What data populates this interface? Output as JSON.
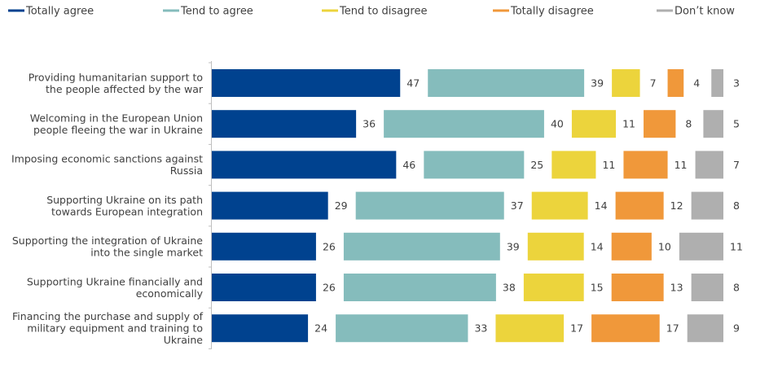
{
  "chart_data": {
    "type": "bar",
    "orientation": "horizontal",
    "stacked": true,
    "legend_position": "top",
    "categories": [
      "Providing humanitarian support to the people affected by the war",
      "Welcoming in the European Union people fleeing the war in Ukraine",
      "Imposing economic sanctions against Russia",
      "Supporting Ukraine on its path towards European integration",
      "Supporting the integration of Ukraine into the single market",
      "Supporting Ukraine financially and economically",
      "Financing the purchase and supply of military equipment and training to Ukraine"
    ],
    "category_lines": [
      [
        "Providing humanitarian support to",
        "the people affected by the war"
      ],
      [
        "Welcoming in the European Union",
        "people fleeing the war in Ukraine"
      ],
      [
        "Imposing economic sanctions against",
        "Russia"
      ],
      [
        "Supporting Ukraine on its path",
        "towards European integration"
      ],
      [
        "Supporting the integration of Ukraine",
        "into the single market"
      ],
      [
        "Supporting Ukraine financially and",
        "economically"
      ],
      [
        "Financing the purchase and supply of",
        "military equipment and training to",
        "Ukraine"
      ]
    ],
    "series": [
      {
        "name": "Totally agree",
        "color": "#00428f",
        "values": [
          47,
          36,
          46,
          29,
          26,
          26,
          24
        ]
      },
      {
        "name": "Tend to agree",
        "color": "#85bcbc",
        "values": [
          39,
          40,
          25,
          37,
          39,
          38,
          33
        ]
      },
      {
        "name": "Tend to disagree",
        "color": "#ecd43c",
        "values": [
          7,
          11,
          11,
          14,
          14,
          15,
          17
        ]
      },
      {
        "name": "Totally disagree",
        "color": "#f0983a",
        "values": [
          4,
          8,
          11,
          12,
          10,
          13,
          17
        ]
      },
      {
        "name": "Don’t know",
        "color": "#afafaf",
        "values": [
          3,
          5,
          7,
          8,
          11,
          8,
          9
        ]
      }
    ],
    "title": "",
    "xlabel": "",
    "ylabel": "",
    "grid": false
  }
}
